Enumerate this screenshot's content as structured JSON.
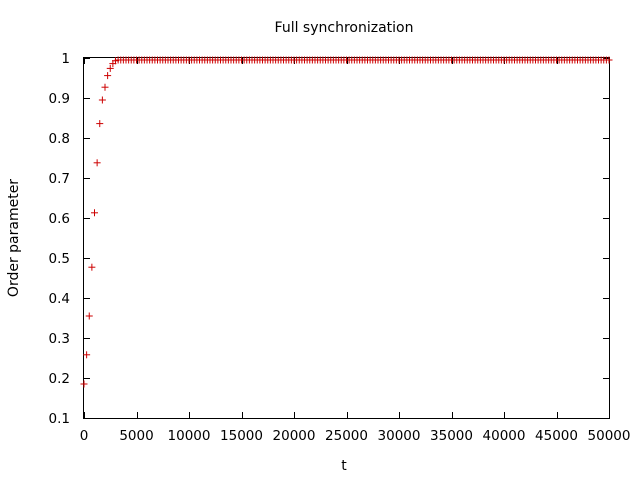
{
  "chart_data": {
    "type": "scatter",
    "title": "Full synchronization",
    "xlabel": "t",
    "ylabel": "Order parameter",
    "xlim": [
      0,
      50000
    ],
    "ylim": [
      0.1,
      1
    ],
    "xticks": [
      0,
      5000,
      10000,
      15000,
      20000,
      25000,
      30000,
      35000,
      40000,
      45000,
      50000
    ],
    "yticks": [
      0.1,
      0.2,
      0.3,
      0.4,
      0.5,
      0.6,
      0.7,
      0.8,
      0.9,
      1
    ],
    "xtick_labels": [
      "0",
      "5000",
      "10000",
      "15000",
      "20000",
      "25000",
      "30000",
      "35000",
      "40000",
      "45000",
      "50000"
    ],
    "ytick_labels": [
      "0.1",
      "0.2",
      "0.3",
      "0.4",
      "0.5",
      "0.6",
      "0.7",
      "0.8",
      "0.9",
      "1"
    ],
    "grid": false,
    "legend": "none",
    "marker": "plus",
    "series_color": "#cc0000",
    "series": [
      {
        "x": [
          0,
          250,
          500,
          750,
          1000,
          1250,
          1500,
          1750,
          2000,
          2250,
          2500,
          2750,
          3000
        ],
        "y": [
          0.185,
          0.258,
          0.355,
          0.477,
          0.613,
          0.738,
          0.836,
          0.895,
          0.927,
          0.956,
          0.974,
          0.986,
          0.993
        ],
        "plateau": {
          "x_start": 3250,
          "x_end": 50000,
          "x_step": 250,
          "y": 0.995
        }
      }
    ]
  }
}
